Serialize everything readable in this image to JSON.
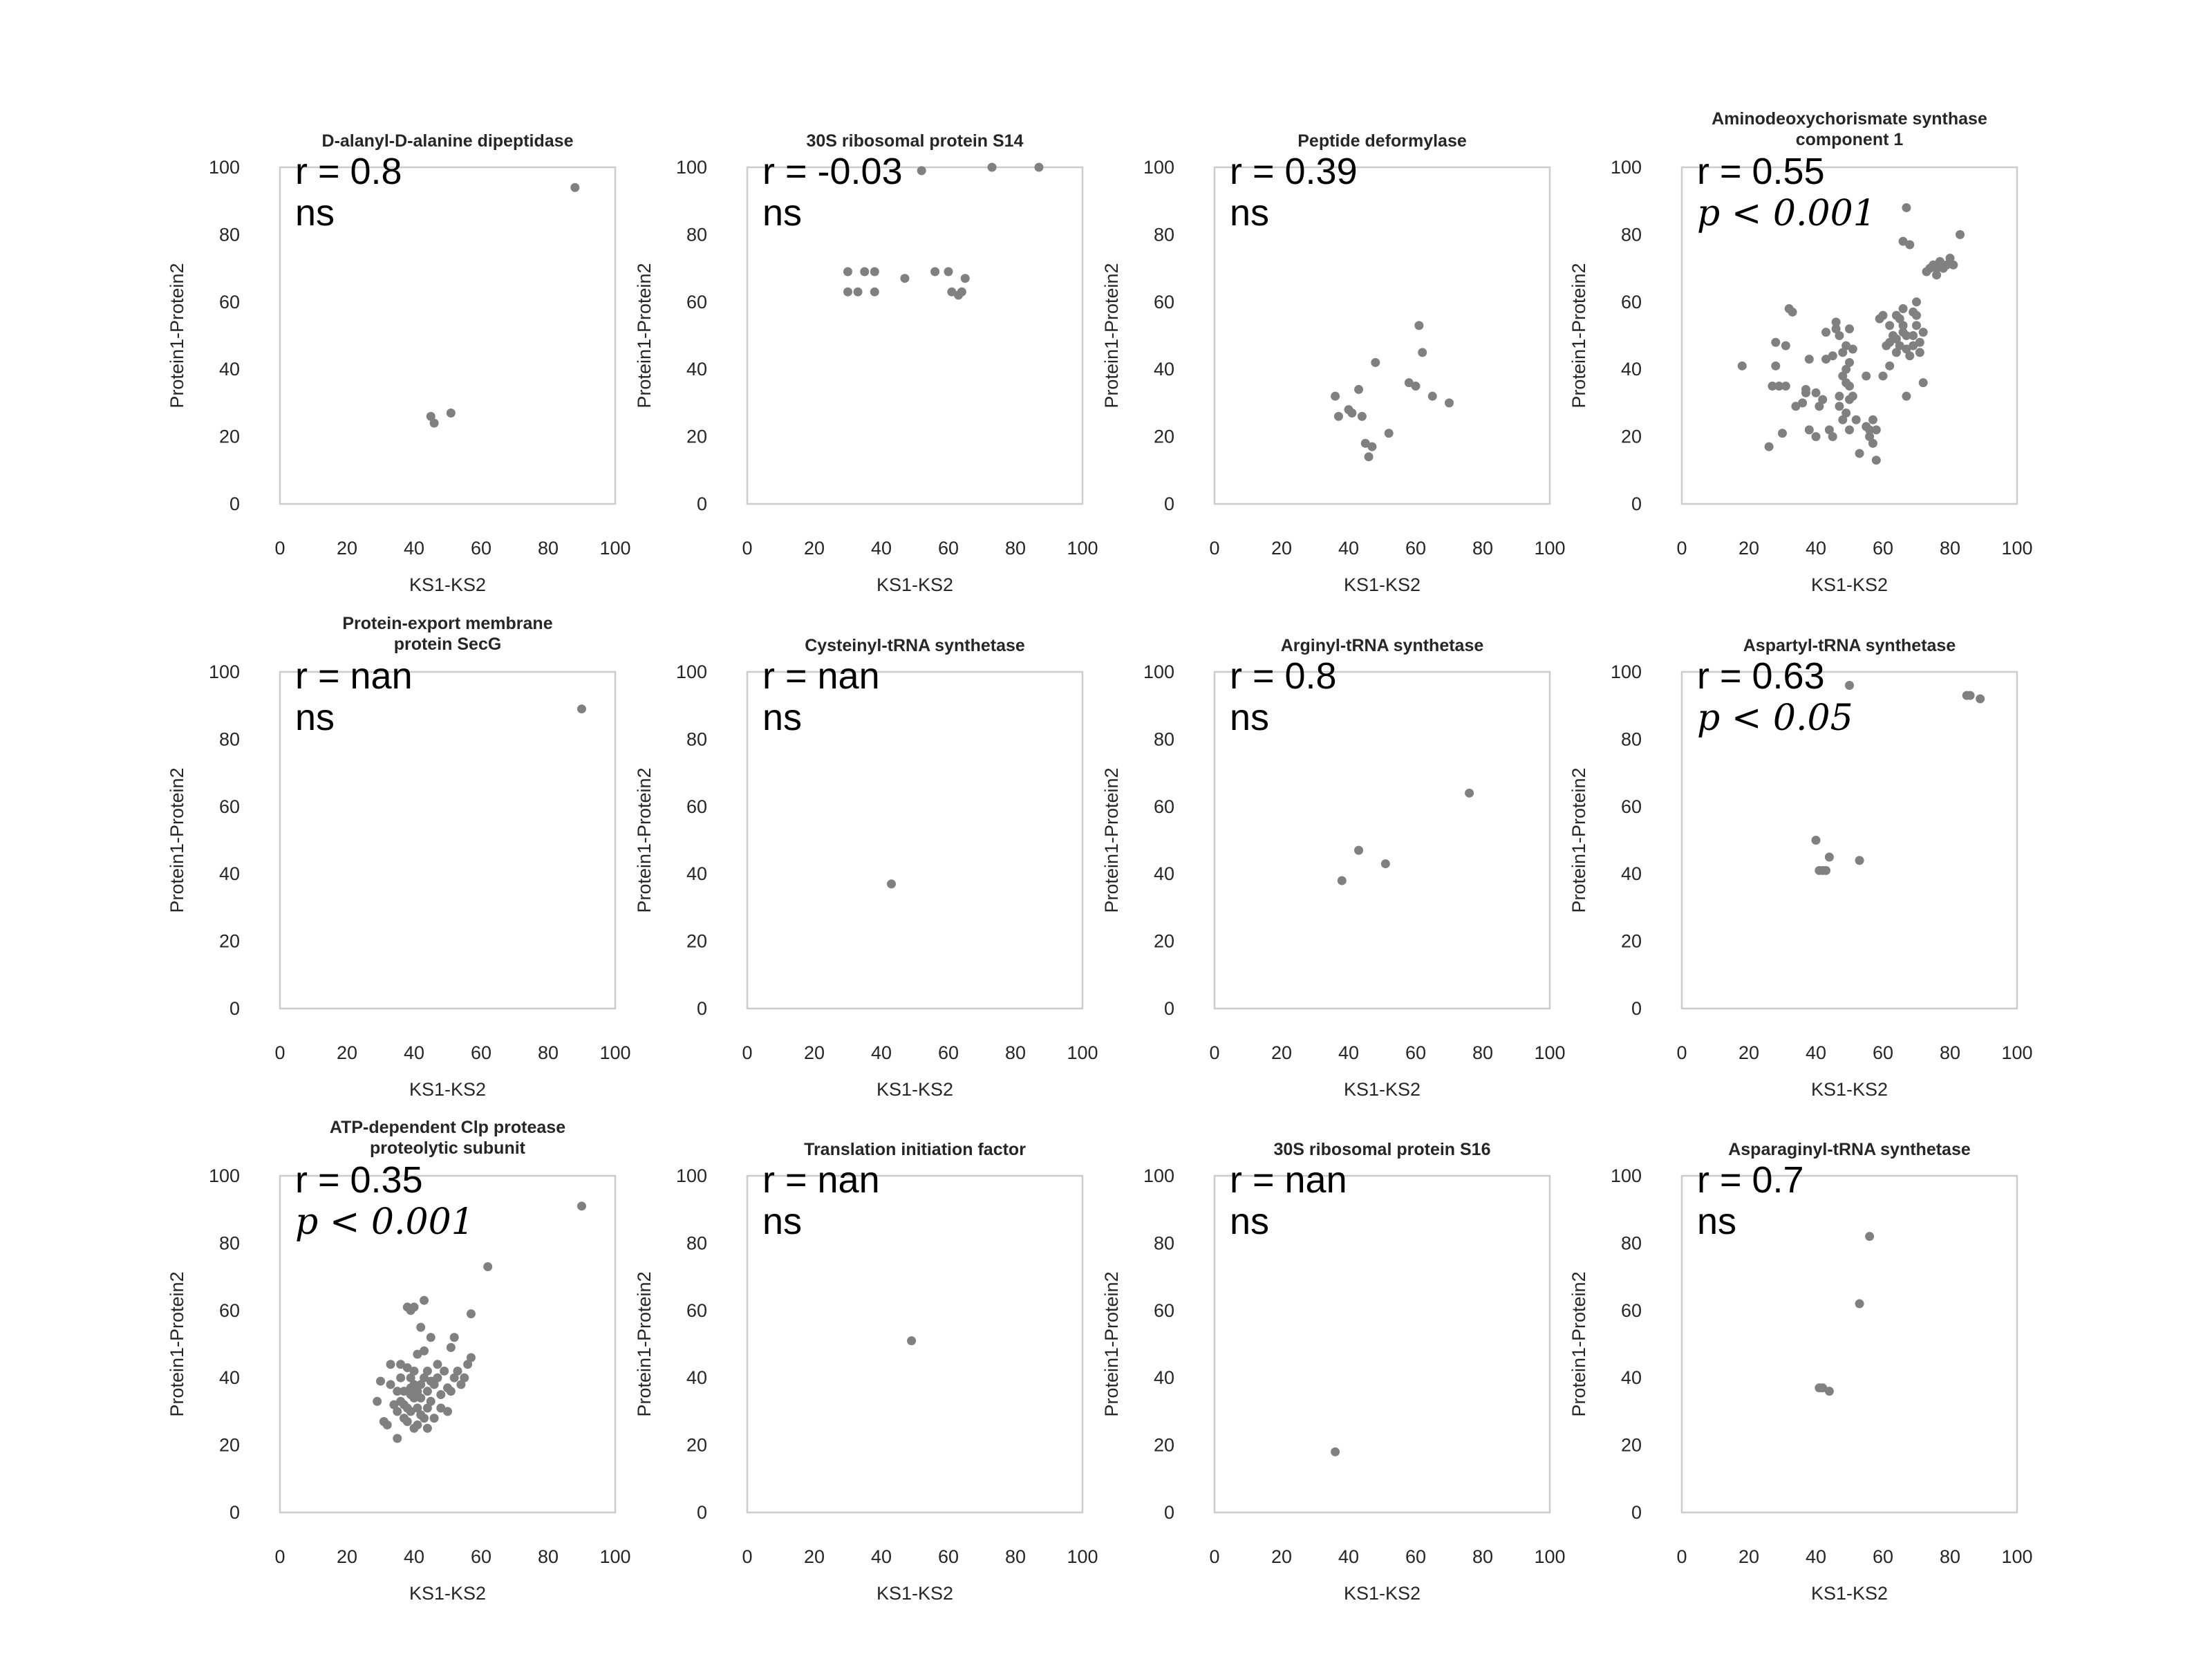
{
  "style": {
    "point_color": "#808080",
    "frame_color": "#cccccc",
    "text_color": "#262626"
  },
  "chart_data": [
    {
      "type": "scatter",
      "title": "D-alanyl-D-alanine dipeptidase",
      "xlabel": "KS1-KS2",
      "ylabel": "Protein1-Protein2",
      "xlim": [
        0,
        100
      ],
      "ylim": [
        0,
        100
      ],
      "xticks": [
        "0",
        "20",
        "40",
        "60",
        "80",
        "100"
      ],
      "yticks": [
        "0",
        "20",
        "40",
        "60",
        "80",
        "100"
      ],
      "stat_r": "r = 0.8",
      "stat_p": "ns",
      "grid": false,
      "points": [
        [
          88,
          94
        ],
        [
          45,
          26
        ],
        [
          46,
          24
        ],
        [
          51,
          27
        ]
      ]
    },
    {
      "type": "scatter",
      "title": "30S ribosomal protein S14",
      "xlabel": "KS1-KS2",
      "ylabel": "Protein1-Protein2",
      "xlim": [
        0,
        100
      ],
      "ylim": [
        0,
        100
      ],
      "xticks": [
        "0",
        "20",
        "40",
        "60",
        "80",
        "100"
      ],
      "yticks": [
        "0",
        "20",
        "40",
        "60",
        "80",
        "100"
      ],
      "stat_r": "r = -0.03",
      "stat_p": "ns",
      "grid": false,
      "points": [
        [
          30,
          69
        ],
        [
          35,
          69
        ],
        [
          38,
          69
        ],
        [
          30,
          63
        ],
        [
          33,
          63
        ],
        [
          38,
          63
        ],
        [
          47,
          67
        ],
        [
          56,
          69
        ],
        [
          60,
          69
        ],
        [
          61,
          63
        ],
        [
          63,
          62
        ],
        [
          64,
          63
        ],
        [
          65,
          67
        ],
        [
          52,
          99
        ],
        [
          73,
          100
        ],
        [
          87,
          100
        ]
      ]
    },
    {
      "type": "scatter",
      "title": "Peptide deformylase",
      "xlabel": "KS1-KS2",
      "ylabel": "Protein1-Protein2",
      "xlim": [
        0,
        100
      ],
      "ylim": [
        0,
        100
      ],
      "xticks": [
        "0",
        "20",
        "40",
        "60",
        "80",
        "100"
      ],
      "yticks": [
        "0",
        "20",
        "40",
        "60",
        "80",
        "100"
      ],
      "stat_r": "r = 0.39",
      "stat_p": "ns",
      "grid": false,
      "points": [
        [
          36,
          32
        ],
        [
          37,
          26
        ],
        [
          40,
          28
        ],
        [
          41,
          27
        ],
        [
          43,
          34
        ],
        [
          44,
          26
        ],
        [
          45,
          18
        ],
        [
          46,
          14
        ],
        [
          47,
          17
        ],
        [
          48,
          42
        ],
        [
          52,
          21
        ],
        [
          58,
          36
        ],
        [
          60,
          35
        ],
        [
          61,
          53
        ],
        [
          62,
          45
        ],
        [
          65,
          32
        ],
        [
          70,
          30
        ]
      ]
    },
    {
      "type": "scatter",
      "title": "Aminodeoxychorismate synthase component 1",
      "title_lines": [
        "Aminodeoxychorismate synthase",
        "component 1"
      ],
      "xlabel": "KS1-KS2",
      "ylabel": "Protein1-Protein2",
      "xlim": [
        0,
        100
      ],
      "ylim": [
        0,
        100
      ],
      "xticks": [
        "0",
        "20",
        "40",
        "60",
        "80",
        "100"
      ],
      "yticks": [
        "0",
        "20",
        "40",
        "60",
        "80",
        "100"
      ],
      "stat_r": "r = 0.55",
      "stat_p": "p < 0.001",
      "grid": false,
      "points": [
        [
          18,
          41
        ],
        [
          26,
          17
        ],
        [
          27,
          35
        ],
        [
          28,
          48
        ],
        [
          29,
          35
        ],
        [
          30,
          21
        ],
        [
          31,
          35
        ],
        [
          28,
          41
        ],
        [
          31,
          47
        ],
        [
          32,
          58
        ],
        [
          33,
          57
        ],
        [
          34,
          29
        ],
        [
          36,
          30
        ],
        [
          37,
          33
        ],
        [
          37,
          34
        ],
        [
          38,
          43
        ],
        [
          38,
          22
        ],
        [
          40,
          20
        ],
        [
          41,
          29
        ],
        [
          42,
          31
        ],
        [
          43,
          43
        ],
        [
          43,
          51
        ],
        [
          44,
          22
        ],
        [
          45,
          20
        ],
        [
          45,
          44
        ],
        [
          46,
          52
        ],
        [
          46,
          54
        ],
        [
          47,
          50
        ],
        [
          47,
          32
        ],
        [
          47,
          29
        ],
        [
          48,
          25
        ],
        [
          48,
          38
        ],
        [
          48,
          45
        ],
        [
          49,
          40
        ],
        [
          49,
          47
        ],
        [
          50,
          31
        ],
        [
          50,
          42
        ],
        [
          50,
          52
        ],
        [
          50,
          22
        ],
        [
          50,
          35
        ],
        [
          51,
          46
        ],
        [
          51,
          32
        ],
        [
          49,
          27
        ],
        [
          49,
          36
        ],
        [
          52,
          25
        ],
        [
          53,
          15
        ],
        [
          55,
          23
        ],
        [
          56,
          22
        ],
        [
          56,
          20
        ],
        [
          57,
          18
        ],
        [
          57,
          25
        ],
        [
          58,
          13
        ],
        [
          58,
          22
        ],
        [
          59,
          55
        ],
        [
          60,
          56
        ],
        [
          61,
          47
        ],
        [
          62,
          48
        ],
        [
          62,
          53
        ],
        [
          63,
          50
        ],
        [
          64,
          45
        ],
        [
          64,
          49
        ],
        [
          64,
          56
        ],
        [
          65,
          55
        ],
        [
          65,
          47
        ],
        [
          66,
          51
        ],
        [
          66,
          53
        ],
        [
          66,
          58
        ],
        [
          67,
          46
        ],
        [
          67,
          50
        ],
        [
          67,
          88
        ],
        [
          67,
          32
        ],
        [
          66,
          78
        ],
        [
          68,
          77
        ],
        [
          68,
          44
        ],
        [
          69,
          50
        ],
        [
          69,
          47
        ],
        [
          69,
          57
        ],
        [
          70,
          56
        ],
        [
          70,
          53
        ],
        [
          70,
          60
        ],
        [
          71,
          48
        ],
        [
          71,
          45
        ],
        [
          72,
          51
        ],
        [
          72,
          36
        ],
        [
          73,
          69
        ],
        [
          74,
          70
        ],
        [
          75,
          71
        ],
        [
          76,
          70
        ],
        [
          76,
          68
        ],
        [
          77,
          72
        ],
        [
          78,
          70
        ],
        [
          79,
          71
        ],
        [
          80,
          73
        ],
        [
          81,
          71
        ],
        [
          83,
          80
        ],
        [
          60,
          38
        ],
        [
          62,
          41
        ],
        [
          55,
          38
        ],
        [
          40,
          33
        ]
      ]
    },
    {
      "type": "scatter",
      "title": "Protein-export membrane protein SecG",
      "title_lines": [
        "Protein-export membrane",
        "protein SecG"
      ],
      "xlabel": "KS1-KS2",
      "ylabel": "Protein1-Protein2",
      "xlim": [
        0,
        100
      ],
      "ylim": [
        0,
        100
      ],
      "xticks": [
        "0",
        "20",
        "40",
        "60",
        "80",
        "100"
      ],
      "yticks": [
        "0",
        "20",
        "40",
        "60",
        "80",
        "100"
      ],
      "stat_r": "r = nan",
      "stat_p": "ns",
      "grid": false,
      "points": [
        [
          90,
          89
        ]
      ]
    },
    {
      "type": "scatter",
      "title": "Cysteinyl-tRNA synthetase",
      "xlabel": "KS1-KS2",
      "ylabel": "Protein1-Protein2",
      "xlim": [
        0,
        100
      ],
      "ylim": [
        0,
        100
      ],
      "xticks": [
        "0",
        "20",
        "40",
        "60",
        "80",
        "100"
      ],
      "yticks": [
        "0",
        "20",
        "40",
        "60",
        "80",
        "100"
      ],
      "stat_r": "r = nan",
      "stat_p": "ns",
      "grid": false,
      "points": [
        [
          43,
          37
        ]
      ]
    },
    {
      "type": "scatter",
      "title": "Arginyl-tRNA synthetase",
      "xlabel": "KS1-KS2",
      "ylabel": "Protein1-Protein2",
      "xlim": [
        0,
        100
      ],
      "ylim": [
        0,
        100
      ],
      "xticks": [
        "0",
        "20",
        "40",
        "60",
        "80",
        "100"
      ],
      "yticks": [
        "0",
        "20",
        "40",
        "60",
        "80",
        "100"
      ],
      "stat_r": "r = 0.8",
      "stat_p": "ns",
      "grid": false,
      "points": [
        [
          38,
          38
        ],
        [
          43,
          47
        ],
        [
          51,
          43
        ],
        [
          76,
          64
        ]
      ]
    },
    {
      "type": "scatter",
      "title": "Aspartyl-tRNA synthetase",
      "xlabel": "KS1-KS2",
      "ylabel": "Protein1-Protein2",
      "xlim": [
        0,
        100
      ],
      "ylim": [
        0,
        100
      ],
      "xticks": [
        "0",
        "20",
        "40",
        "60",
        "80",
        "100"
      ],
      "yticks": [
        "0",
        "20",
        "40",
        "60",
        "80",
        "100"
      ],
      "stat_r": "r = 0.63",
      "stat_p": "p < 0.05",
      "grid": false,
      "points": [
        [
          40,
          50
        ],
        [
          41,
          41
        ],
        [
          42,
          41
        ],
        [
          43,
          41
        ],
        [
          44,
          45
        ],
        [
          53,
          44
        ],
        [
          50,
          96
        ],
        [
          85,
          93
        ],
        [
          86,
          93
        ],
        [
          89,
          92
        ]
      ]
    },
    {
      "type": "scatter",
      "title": "ATP-dependent Clp protease proteolytic subunit",
      "title_lines": [
        "ATP-dependent Clp protease",
        "proteolytic subunit"
      ],
      "xlabel": "KS1-KS2",
      "ylabel": "Protein1-Protein2",
      "xlim": [
        0,
        100
      ],
      "ylim": [
        0,
        100
      ],
      "xticks": [
        "0",
        "20",
        "40",
        "60",
        "80",
        "100"
      ],
      "yticks": [
        "0",
        "20",
        "40",
        "60",
        "80",
        "100"
      ],
      "stat_r": "r = 0.35",
      "stat_p": "p < 0.001",
      "grid": false,
      "points": [
        [
          29,
          33
        ],
        [
          30,
          39
        ],
        [
          31,
          27
        ],
        [
          32,
          26
        ],
        [
          33,
          44
        ],
        [
          33,
          38
        ],
        [
          35,
          22
        ],
        [
          35,
          36
        ],
        [
          35,
          30
        ],
        [
          36,
          40
        ],
        [
          36,
          33
        ],
        [
          37,
          28
        ],
        [
          37,
          36
        ],
        [
          38,
          61
        ],
        [
          38,
          31
        ],
        [
          38,
          43
        ],
        [
          38,
          27
        ],
        [
          39,
          60
        ],
        [
          39,
          35
        ],
        [
          39,
          40
        ],
        [
          39,
          30
        ],
        [
          40,
          61
        ],
        [
          40,
          34
        ],
        [
          40,
          25
        ],
        [
          40,
          38
        ],
        [
          40,
          42
        ],
        [
          41,
          26
        ],
        [
          41,
          31
        ],
        [
          41,
          36
        ],
        [
          41,
          47
        ],
        [
          42,
          55
        ],
        [
          42,
          29
        ],
        [
          42,
          34
        ],
        [
          42,
          38
        ],
        [
          43,
          28
        ],
        [
          43,
          40
        ],
        [
          43,
          48
        ],
        [
          43,
          63
        ],
        [
          44,
          25
        ],
        [
          44,
          31
        ],
        [
          44,
          36
        ],
        [
          44,
          42
        ],
        [
          45,
          52
        ],
        [
          45,
          33
        ],
        [
          46,
          38
        ],
        [
          46,
          28
        ],
        [
          47,
          40
        ],
        [
          47,
          44
        ],
        [
          48,
          35
        ],
        [
          48,
          31
        ],
        [
          49,
          42
        ],
        [
          50,
          37
        ],
        [
          50,
          30
        ],
        [
          51,
          49
        ],
        [
          51,
          36
        ],
        [
          52,
          40
        ],
        [
          52,
          52
        ],
        [
          53,
          42
        ],
        [
          54,
          38
        ],
        [
          55,
          40
        ],
        [
          56,
          44
        ],
        [
          57,
          46
        ],
        [
          57,
          59
        ],
        [
          62,
          73
        ],
        [
          90,
          91
        ],
        [
          37,
          32
        ],
        [
          36,
          44
        ],
        [
          34,
          32
        ],
        [
          39,
          37
        ],
        [
          45,
          39
        ]
      ]
    },
    {
      "type": "scatter",
      "title": "Translation initiation factor",
      "xlabel": "KS1-KS2",
      "ylabel": "Protein1-Protein2",
      "xlim": [
        0,
        100
      ],
      "ylim": [
        0,
        100
      ],
      "xticks": [
        "0",
        "20",
        "40",
        "60",
        "80",
        "100"
      ],
      "yticks": [
        "0",
        "20",
        "40",
        "60",
        "80",
        "100"
      ],
      "stat_r": "r = nan",
      "stat_p": "ns",
      "grid": false,
      "points": [
        [
          49,
          51
        ]
      ]
    },
    {
      "type": "scatter",
      "title": "30S ribosomal protein S16",
      "xlabel": "KS1-KS2",
      "ylabel": "Protein1-Protein2",
      "xlim": [
        0,
        100
      ],
      "ylim": [
        0,
        100
      ],
      "xticks": [
        "0",
        "20",
        "40",
        "60",
        "80",
        "100"
      ],
      "yticks": [
        "0",
        "20",
        "40",
        "60",
        "80",
        "100"
      ],
      "stat_r": "r = nan",
      "stat_p": "ns",
      "grid": false,
      "points": [
        [
          36,
          18
        ]
      ]
    },
    {
      "type": "scatter",
      "title": "Asparaginyl-tRNA synthetase",
      "xlabel": "KS1-KS2",
      "ylabel": "Protein1-Protein2",
      "xlim": [
        0,
        100
      ],
      "ylim": [
        0,
        100
      ],
      "xticks": [
        "0",
        "20",
        "40",
        "60",
        "80",
        "100"
      ],
      "yticks": [
        "0",
        "20",
        "40",
        "60",
        "80",
        "100"
      ],
      "stat_r": "r = 0.7",
      "stat_p": "ns",
      "grid": false,
      "points": [
        [
          41,
          37
        ],
        [
          42,
          37
        ],
        [
          44,
          36
        ],
        [
          53,
          62
        ],
        [
          56,
          82
        ]
      ]
    }
  ]
}
